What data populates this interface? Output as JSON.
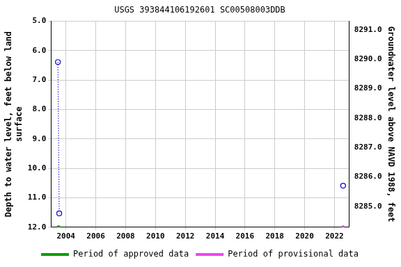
{
  "chart_data": {
    "type": "scatter",
    "title": "USGS 393844106192601 SC00508003DDB",
    "y_label": [
      "Depth to water level, feet below land",
      "surface"
    ],
    "y2_label": "Groundwater level above NAVD 1988, feet",
    "xlim": [
      2003,
      2023
    ],
    "xticks": [
      2004,
      2006,
      2008,
      2010,
      2012,
      2014,
      2016,
      2018,
      2020,
      2022
    ],
    "ylim": [
      12,
      5
    ],
    "yticks": [
      {
        "value": 5,
        "label": "5.0"
      },
      {
        "value": 6,
        "label": "6.0"
      },
      {
        "value": 7,
        "label": "7.0"
      },
      {
        "value": 8,
        "label": "8.0"
      },
      {
        "value": 9,
        "label": "9.0"
      },
      {
        "value": 10,
        "label": "10.0"
      },
      {
        "value": 11,
        "label": "11.0"
      },
      {
        "value": 12,
        "label": "12.0"
      }
    ],
    "y2lim": [
      8284.29,
      8291.29
    ],
    "y2ticks": [
      {
        "value": 8285,
        "label": "8285.0"
      },
      {
        "value": 8286,
        "label": "8286.0"
      },
      {
        "value": 8287,
        "label": "8287.0"
      },
      {
        "value": 8288,
        "label": "8288.0"
      },
      {
        "value": 8289,
        "label": "8289.0"
      },
      {
        "value": 8290,
        "label": "8290.0"
      },
      {
        "value": 8291,
        "label": "8291.0"
      }
    ],
    "grid": true,
    "legend": "bottom",
    "series": [
      {
        "color": "#0000cc",
        "marker": "circle-open",
        "line_style": "dotted",
        "x": [
          2003.46,
          2003.55
        ],
        "values": [
          6.39,
          11.53
        ]
      },
      {
        "color": "#0000cc",
        "marker": "circle-open",
        "line_style": "none",
        "x": [
          2022.58
        ],
        "values": [
          10.59
        ]
      }
    ],
    "periods": [
      {
        "name": "Period of approved data",
        "color": "#00a000",
        "x": [
          2003.4,
          2003.6
        ]
      },
      {
        "name": "Period of provisional data",
        "color": "#ee44ee",
        "x": [
          2022.5,
          2022.65
        ]
      }
    ]
  }
}
